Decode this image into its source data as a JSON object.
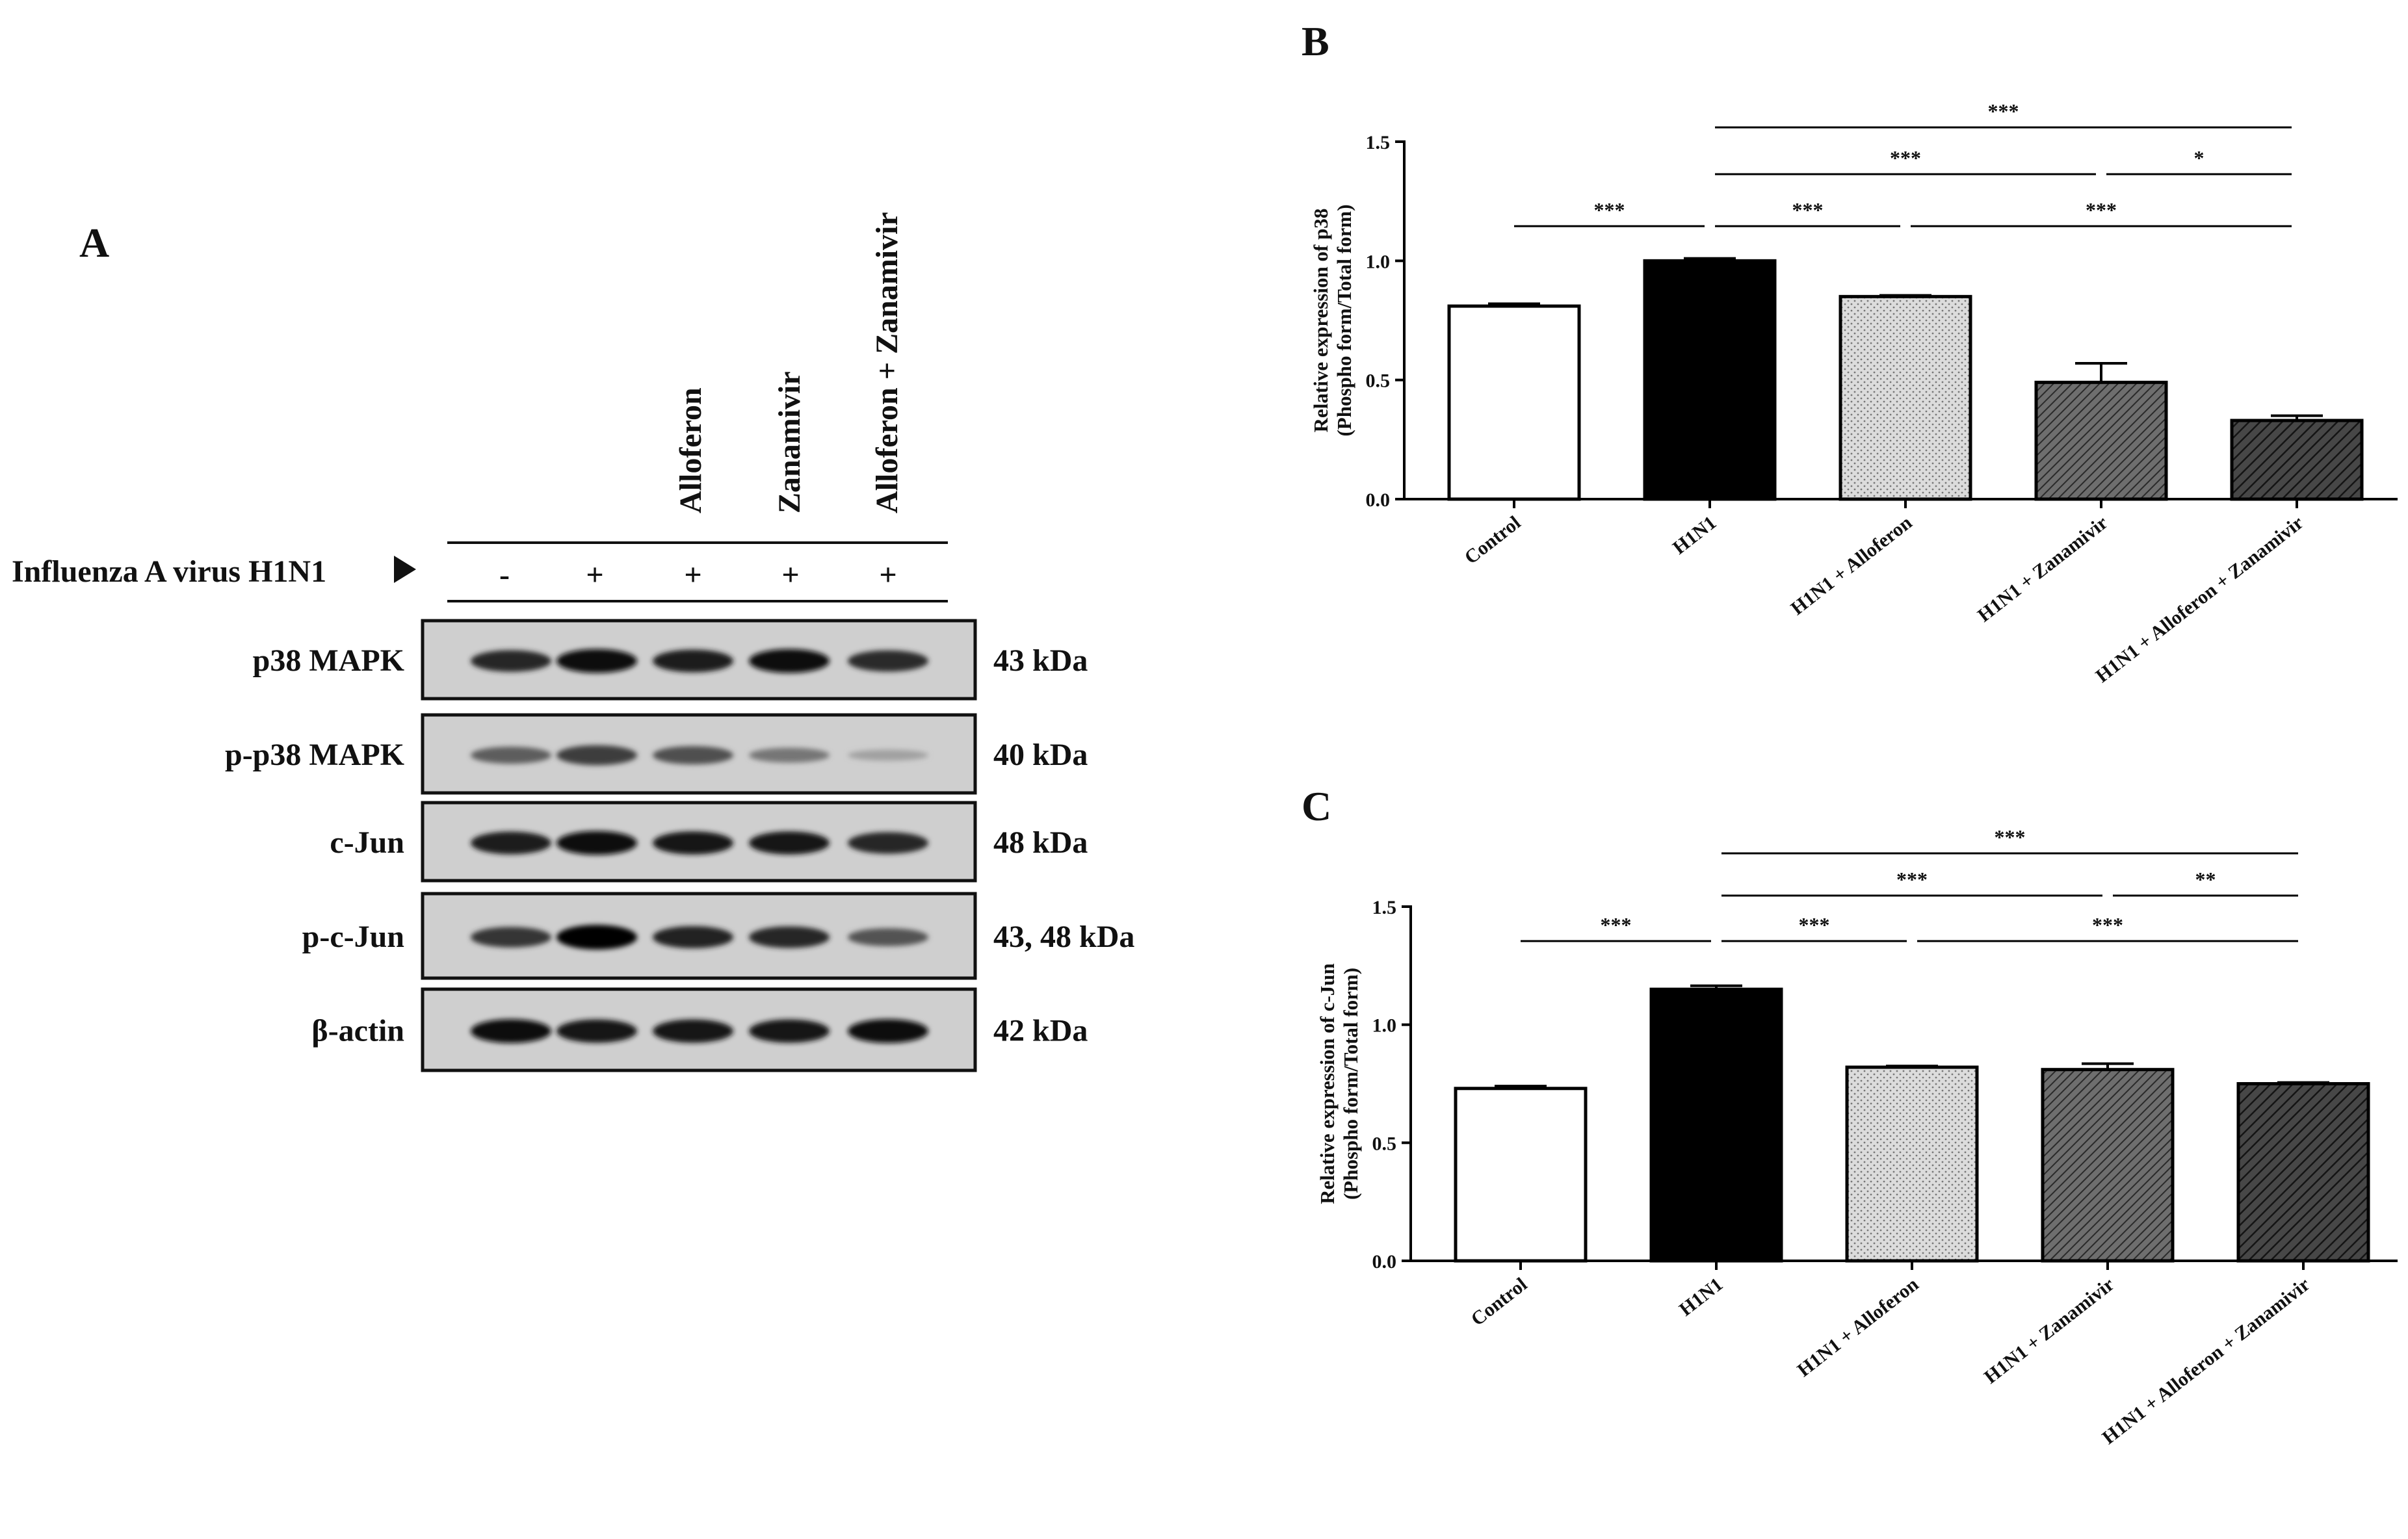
{
  "panel_a": {
    "letter": "A",
    "virus_label": "Influenza A virus H1N1",
    "treatments": [
      "",
      "",
      "Alloferon",
      "Zanamivir",
      "Alloferon + Zanamivir"
    ],
    "virus_signs": [
      "-",
      "+",
      "+",
      "+",
      "+"
    ],
    "blots": [
      {
        "name": "p38 MAPK",
        "size": "43 kDa",
        "intensities": [
          0.82,
          0.95,
          0.88,
          0.95,
          0.8
        ]
      },
      {
        "name": "p-p38 MAPK",
        "size": "40 kDa",
        "intensities": [
          0.55,
          0.72,
          0.62,
          0.42,
          0.2
        ]
      },
      {
        "name": "c-Jun",
        "size": "48 kDa",
        "intensities": [
          0.88,
          0.95,
          0.9,
          0.9,
          0.82
        ]
      },
      {
        "name": "p-c-Jun",
        "size": "43, 48 kDa",
        "intensities": [
          0.75,
          1.0,
          0.85,
          0.82,
          0.6
        ]
      },
      {
        "name": "β-actin",
        "size": "42 kDa",
        "intensities": [
          0.95,
          0.92,
          0.92,
          0.92,
          0.95
        ]
      }
    ]
  },
  "chart_data": [
    {
      "panel": "B",
      "type": "bar",
      "ylabel_line1": "Relative expression of p38",
      "ylabel_line2": "(Phospho form/Total form)",
      "categories": [
        "Control",
        "H1N1",
        "H1N1 + Alloferon",
        "H1N1 + Zanamivir",
        "H1N1 + Alloferon + Zanamivir"
      ],
      "values": [
        0.81,
        1.0,
        0.85,
        0.49,
        0.33
      ],
      "errors": [
        0.01,
        0.01,
        0.005,
        0.08,
        0.02
      ],
      "ylim": [
        0,
        1.5
      ],
      "yticks": [
        "0.0",
        "0.5",
        "1.0",
        "1.5"
      ],
      "fills": [
        "white",
        "black",
        "dots",
        "hatch-gray",
        "hatch-dark"
      ],
      "significance": [
        {
          "from": 0,
          "to": 1,
          "label": "***",
          "level": 1
        },
        {
          "from": 1,
          "to": 2,
          "label": "***",
          "level": 1
        },
        {
          "from": 2,
          "to": 4,
          "label": "***",
          "level": 1
        },
        {
          "from": 1,
          "to": 3,
          "label": "***",
          "level": 2
        },
        {
          "from": 3,
          "to": 4,
          "label": "*",
          "level": 2
        },
        {
          "from": 1,
          "to": 4,
          "label": "***",
          "level": 3
        }
      ]
    },
    {
      "panel": "C",
      "type": "bar",
      "ylabel_line1": "Relative expression of c-Jun",
      "ylabel_line2": "(Phospho form/Total form)",
      "categories": [
        "Control",
        "H1N1",
        "H1N1 + Alloferon",
        "H1N1 + Zanamivir",
        "H1N1 + Alloferon + Zanamivir"
      ],
      "values": [
        0.73,
        1.15,
        0.82,
        0.81,
        0.75
      ],
      "errors": [
        0.01,
        0.015,
        0.005,
        0.025,
        0.005
      ],
      "ylim": [
        0,
        1.5
      ],
      "yticks": [
        "0.0",
        "0.5",
        "1.0",
        "1.5"
      ],
      "fills": [
        "white",
        "black",
        "dots",
        "hatch-gray",
        "hatch-dark"
      ],
      "significance": [
        {
          "from": 0,
          "to": 1,
          "label": "***",
          "level": 1
        },
        {
          "from": 1,
          "to": 2,
          "label": "***",
          "level": 1
        },
        {
          "from": 2,
          "to": 4,
          "label": "***",
          "level": 1
        },
        {
          "from": 1,
          "to": 3,
          "label": "***",
          "level": 2
        },
        {
          "from": 3,
          "to": 4,
          "label": "**",
          "level": 2
        },
        {
          "from": 1,
          "to": 4,
          "label": "***",
          "level": 3
        }
      ]
    }
  ]
}
